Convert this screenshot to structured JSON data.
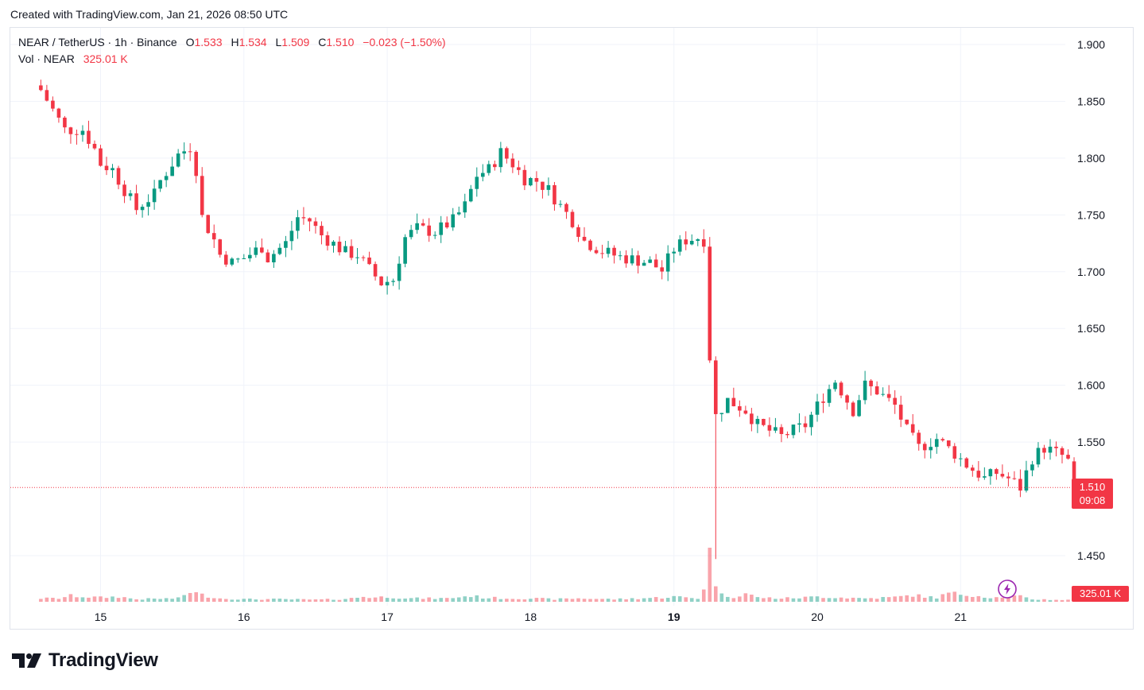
{
  "header": {
    "created_text": "Created with TradingView.com, Jan 21, 2026 08:50 UTC"
  },
  "legend": {
    "symbol": "NEAR / TetherUS · 1h · Binance",
    "open_label": "O",
    "open_value": "1.533",
    "high_label": "H",
    "high_value": "1.534",
    "low_label": "L",
    "low_value": "1.509",
    "close_label": "C",
    "close_value": "1.510",
    "change": "−0.023 (−1.50%)",
    "vol_label": "Vol · NEAR",
    "vol_value": "325.01 K"
  },
  "price_tag": {
    "price": "1.510",
    "countdown": "09:08"
  },
  "volume_tag": "325.01 K",
  "branding": {
    "logo_text": "TradingView"
  },
  "colors": {
    "up": "#089981",
    "down": "#f23645",
    "grid": "#f0f3fa",
    "axis_text": "#131722"
  },
  "chart_data": {
    "type": "candlestick",
    "title": "NEAR / TetherUS · 1h · Binance",
    "x_tick_labels": [
      "15",
      "16",
      "17",
      "18",
      "19",
      "20",
      "21"
    ],
    "y_tick_labels": [
      "1.900",
      "1.850",
      "1.800",
      "1.750",
      "1.700",
      "1.650",
      "1.600",
      "1.550",
      "1.450"
    ],
    "y_ticks": [
      1.9,
      1.85,
      1.8,
      1.75,
      1.7,
      1.65,
      1.6,
      1.55,
      1.45
    ],
    "ylim": [
      1.436,
      1.914
    ],
    "last_price": 1.51,
    "anchors_hours_from_day15": [
      [
        -10,
        1.86
      ],
      [
        -6,
        1.825
      ],
      [
        -3,
        1.825
      ],
      [
        -1,
        1.808
      ],
      [
        0,
        1.795
      ],
      [
        2,
        1.79
      ],
      [
        4,
        1.772
      ],
      [
        6,
        1.755
      ],
      [
        7,
        1.76
      ],
      [
        9,
        1.768
      ],
      [
        10,
        1.78
      ],
      [
        13,
        1.803
      ],
      [
        15,
        1.81
      ],
      [
        16,
        1.79
      ],
      [
        17,
        1.748
      ],
      [
        19,
        1.728
      ],
      [
        20,
        1.715
      ],
      [
        22,
        1.708
      ],
      [
        24,
        1.712
      ],
      [
        27,
        1.722
      ],
      [
        28,
        1.712
      ],
      [
        31,
        1.725
      ],
      [
        33,
        1.748
      ],
      [
        35,
        1.745
      ],
      [
        37,
        1.732
      ],
      [
        41,
        1.717
      ],
      [
        43,
        1.715
      ],
      [
        45,
        1.702
      ],
      [
        47,
        1.69
      ],
      [
        49,
        1.693
      ],
      [
        51,
        1.73
      ],
      [
        53,
        1.738
      ],
      [
        56,
        1.735
      ],
      [
        59,
        1.745
      ],
      [
        61,
        1.758
      ],
      [
        63,
        1.785
      ],
      [
        65,
        1.79
      ],
      [
        67,
        1.805
      ],
      [
        69,
        1.795
      ],
      [
        71,
        1.782
      ],
      [
        73,
        1.78
      ],
      [
        75,
        1.772
      ],
      [
        77,
        1.758
      ],
      [
        79,
        1.745
      ],
      [
        81,
        1.727
      ],
      [
        84,
        1.718
      ],
      [
        87,
        1.713
      ],
      [
        90,
        1.71
      ],
      [
        92,
        1.708
      ],
      [
        94,
        1.701
      ],
      [
        96,
        1.72
      ],
      [
        98,
        1.728
      ],
      [
        100,
        1.73
      ],
      [
        101,
        1.728
      ],
      [
        102,
        1.625
      ],
      [
        103,
        1.573
      ],
      [
        105,
        1.587
      ],
      [
        108,
        1.578
      ],
      [
        110,
        1.565
      ],
      [
        114,
        1.555
      ],
      [
        118,
        1.565
      ],
      [
        121,
        1.59
      ],
      [
        123,
        1.604
      ],
      [
        126,
        1.578
      ],
      [
        128,
        1.6
      ],
      [
        130,
        1.595
      ],
      [
        133,
        1.582
      ],
      [
        135,
        1.56
      ],
      [
        137,
        1.545
      ],
      [
        140,
        1.553
      ],
      [
        143,
        1.54
      ],
      [
        145,
        1.53
      ],
      [
        148,
        1.518
      ],
      [
        150,
        1.523
      ],
      [
        152,
        1.518
      ],
      [
        154,
        1.51
      ],
      [
        156,
        1.536
      ],
      [
        158,
        1.545
      ],
      [
        161,
        1.538
      ],
      [
        162,
        1.533
      ],
      [
        163,
        1.51
      ]
    ],
    "volume_profile_hours_from_day15": [
      [
        -10,
        0.2
      ],
      [
        -7,
        0.2
      ],
      [
        -5,
        0.35
      ],
      [
        -3,
        0.3
      ],
      [
        0,
        0.25
      ],
      [
        3,
        0.3
      ],
      [
        6,
        0.15
      ],
      [
        10,
        0.18
      ],
      [
        13,
        0.2
      ],
      [
        15,
        0.6
      ],
      [
        17,
        0.4
      ],
      [
        20,
        0.2
      ],
      [
        24,
        0.15
      ],
      [
        30,
        0.15
      ],
      [
        36,
        0.12
      ],
      [
        40,
        0.15
      ],
      [
        42,
        0.2
      ],
      [
        44,
        0.3
      ],
      [
        46,
        0.25
      ],
      [
        48,
        0.3
      ],
      [
        52,
        0.2
      ],
      [
        58,
        0.2
      ],
      [
        62,
        0.35
      ],
      [
        64,
        0.25
      ],
      [
        68,
        0.2
      ],
      [
        72,
        0.2
      ],
      [
        76,
        0.15
      ],
      [
        80,
        0.2
      ],
      [
        86,
        0.15
      ],
      [
        90,
        0.2
      ],
      [
        94,
        0.25
      ],
      [
        96,
        0.3
      ],
      [
        100,
        0.2
      ],
      [
        101,
        0.85
      ],
      [
        102,
        2.8
      ],
      [
        103,
        1.2
      ],
      [
        104,
        0.4
      ],
      [
        106,
        0.3
      ],
      [
        108,
        0.5
      ],
      [
        110,
        0.25
      ],
      [
        114,
        0.2
      ],
      [
        118,
        0.25
      ],
      [
        120,
        0.3
      ],
      [
        124,
        0.25
      ],
      [
        128,
        0.2
      ],
      [
        132,
        0.25
      ],
      [
        134,
        0.3
      ],
      [
        136,
        0.4
      ],
      [
        138,
        0.3
      ],
      [
        140,
        0.25
      ],
      [
        142,
        0.5
      ],
      [
        144,
        0.45
      ],
      [
        146,
        0.4
      ],
      [
        148,
        0.3
      ],
      [
        150,
        0.25
      ],
      [
        152,
        0.35
      ],
      [
        154,
        0.3
      ],
      [
        156,
        0.15
      ],
      [
        160,
        0.12
      ],
      [
        163,
        0.1
      ]
    ],
    "volume_max_k": 2.8
  }
}
